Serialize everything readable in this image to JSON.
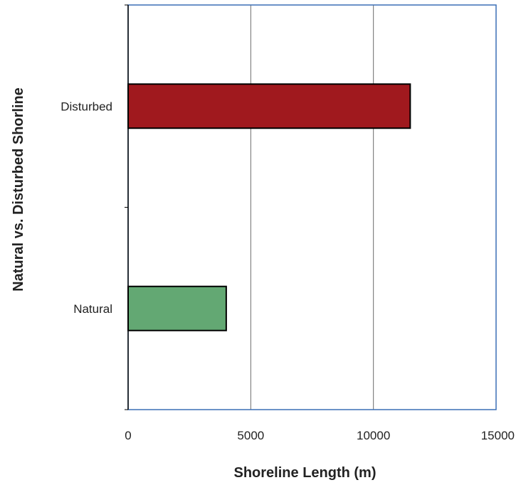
{
  "chart_data": {
    "type": "bar",
    "orientation": "horizontal",
    "title": "",
    "xlabel": "Shoreline Length (m)",
    "ylabel": "Natural vs. Disturbed Shorline",
    "categories": [
      "Natural",
      "Disturbed"
    ],
    "values": [
      4000,
      11500
    ],
    "colors": [
      "#63a873",
      "#a0191e"
    ],
    "xlim": [
      0,
      15000
    ],
    "xticks": [
      0,
      5000,
      10000,
      15000
    ],
    "xtick_labels": [
      "0",
      "5000",
      "10000",
      "15000"
    ],
    "grid": "vertical",
    "legend": "none"
  },
  "colors": {
    "plot_border": "#3a6fb5",
    "gridline": "#6b6b6b",
    "bar_outline": "#000000"
  }
}
